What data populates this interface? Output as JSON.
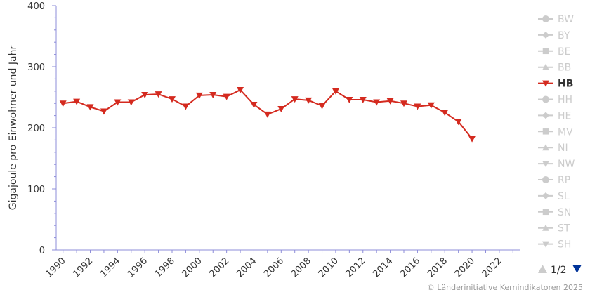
{
  "chart_data": {
    "type": "line",
    "ylabel": "Gigajoule pro Einwohner und Jahr",
    "xlabel": "",
    "xlim": [
      1989.5,
      2023.5
    ],
    "ylim": [
      0,
      400
    ],
    "y_ticks": [
      0,
      100,
      200,
      300,
      400
    ],
    "x_ticks": [
      1990,
      1992,
      1994,
      1996,
      1998,
      2000,
      2002,
      2004,
      2006,
      2008,
      2010,
      2012,
      2014,
      2016,
      2018,
      2020,
      2022
    ],
    "grid": false,
    "legend_position": "right",
    "series": [
      {
        "name": "HB",
        "color": "#d42a1f",
        "marker": "triangle-down",
        "x": [
          1990,
          1991,
          1992,
          1993,
          1994,
          1995,
          1996,
          1997,
          1998,
          1999,
          2000,
          2001,
          2002,
          2003,
          2004,
          2005,
          2006,
          2007,
          2008,
          2009,
          2010,
          2011,
          2012,
          2013,
          2014,
          2015,
          2016,
          2017,
          2018,
          2019,
          2020
        ],
        "values": [
          240,
          243,
          234,
          227,
          242,
          242,
          254,
          255,
          247,
          235,
          253,
          254,
          251,
          262,
          238,
          222,
          231,
          247,
          245,
          236,
          260,
          246,
          246,
          242,
          244,
          240,
          235,
          237,
          225,
          210,
          182
        ]
      }
    ]
  },
  "legend": {
    "items": [
      {
        "label": "BW",
        "marker": "circle",
        "active": false
      },
      {
        "label": "BY",
        "marker": "diamond",
        "active": false
      },
      {
        "label": "BE",
        "marker": "square",
        "active": false
      },
      {
        "label": "BB",
        "marker": "triangle-up",
        "active": false
      },
      {
        "label": "HB",
        "marker": "triangle-down",
        "active": true
      },
      {
        "label": "HH",
        "marker": "circle",
        "active": false
      },
      {
        "label": "HE",
        "marker": "diamond",
        "active": false
      },
      {
        "label": "MV",
        "marker": "square",
        "active": false
      },
      {
        "label": "NI",
        "marker": "triangle-up",
        "active": false
      },
      {
        "label": "NW",
        "marker": "triangle-down",
        "active": false
      },
      {
        "label": "RP",
        "marker": "circle",
        "active": false
      },
      {
        "label": "SL",
        "marker": "diamond",
        "active": false
      },
      {
        "label": "SN",
        "marker": "square",
        "active": false
      },
      {
        "label": "ST",
        "marker": "triangle-up",
        "active": false
      },
      {
        "label": "SH",
        "marker": "triangle-down",
        "active": false
      }
    ],
    "pager": "1/2",
    "active_color": "#d42a1f",
    "inactive_color": "#cccccc",
    "pager_up_color": "#cccccc",
    "pager_down_color": "#003399"
  },
  "axis_color": "#8c8cd9",
  "credits": "© Länderinitiative Kernindikatoren 2025"
}
